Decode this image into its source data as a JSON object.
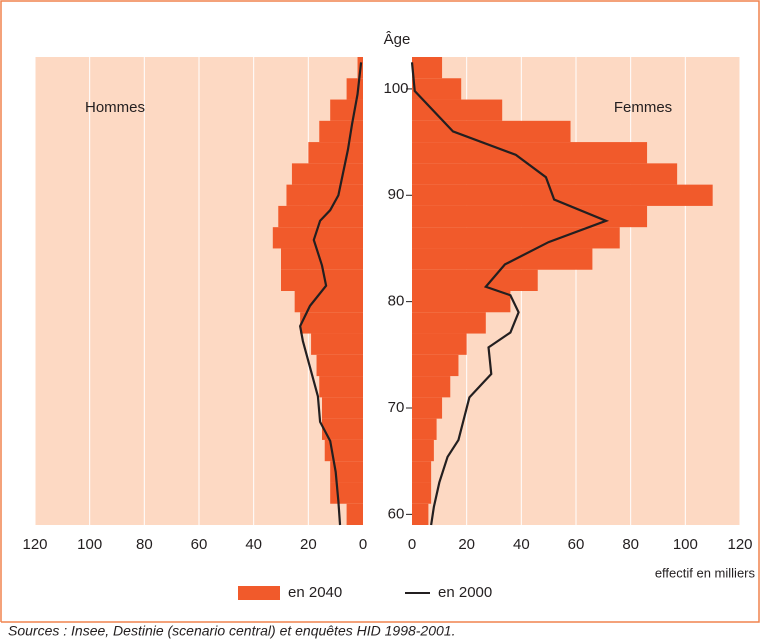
{
  "chart_data": {
    "type": "pyramid",
    "y_axis_label": "Âge",
    "x_axis_label": "effectif en milliers",
    "left_label": "Hommes",
    "right_label": "Femmes",
    "source": "Sources : Insee, Destinie (scenario central) et enquêtes HID 1998-2001.",
    "background": "#fdd9c3",
    "frame_color": "#f0834e",
    "grid": true,
    "age_bins": [
      59,
      61,
      63,
      65,
      67,
      69,
      71,
      73,
      75,
      77,
      79,
      81,
      83,
      85,
      87,
      89,
      91,
      93,
      95,
      97,
      99,
      101,
      103
    ],
    "ylim": [
      59,
      103
    ],
    "yticks": [
      60,
      70,
      80,
      90,
      100
    ],
    "xlim": [
      0,
      120
    ],
    "xticks": [
      0,
      20,
      40,
      60,
      80,
      100,
      120
    ],
    "bars": {
      "name": "en 2040",
      "color": "#f15a2b",
      "men": [
        6,
        12,
        12,
        14,
        15,
        15,
        16,
        17,
        19,
        23,
        25,
        30,
        30,
        33,
        31,
        28,
        26,
        20,
        16,
        12,
        6,
        2
      ],
      "women": [
        6,
        7,
        7,
        8,
        9,
        11,
        14,
        17,
        20,
        27,
        36,
        46,
        66,
        76,
        86,
        110,
        97,
        86,
        58,
        33,
        18,
        11
      ]
    },
    "line": {
      "name": "en 2000",
      "color": "#231f20",
      "men": {
        "ages": [
          59,
          61.2,
          64,
          66.9,
          68.7,
          71.1,
          76.3,
          77.7,
          79.6,
          81.5,
          83.4,
          85.8,
          87.6,
          88.6,
          90,
          94.3,
          96.7,
          99.5,
          102.5
        ],
        "values": [
          8.4,
          9,
          10,
          12,
          15.7,
          16.5,
          22,
          23,
          19.4,
          13.5,
          15,
          18,
          15.7,
          12,
          9,
          5.5,
          4,
          2,
          0.7
        ]
      },
      "women": {
        "ages": [
          59,
          60.7,
          63,
          65.4,
          67,
          69,
          71,
          73.2,
          75.7,
          77.1,
          79,
          80.6,
          81.4,
          83.5,
          85.6,
          87.6,
          89.6,
          91.7,
          93.8,
          96,
          99.8,
          102.5
        ],
        "values": [
          7,
          8,
          10,
          13,
          17,
          19,
          21,
          29,
          28,
          36,
          39,
          36,
          27,
          34,
          50,
          71,
          52,
          49,
          38,
          15,
          1,
          0
        ]
      }
    }
  }
}
